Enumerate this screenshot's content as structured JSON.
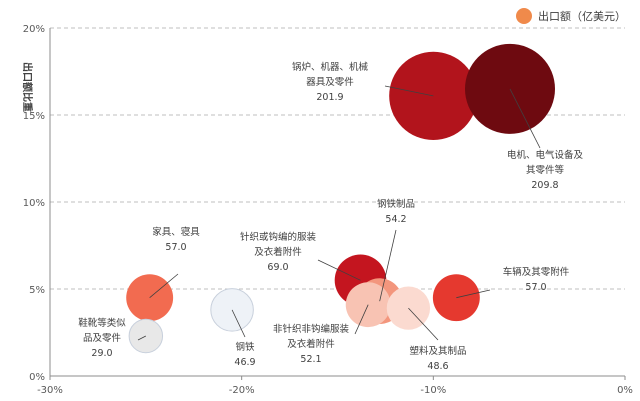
{
  "chart_data": {
    "type": "scatter",
    "title": "",
    "xlabel": "",
    "ylabel": "出口额比重",
    "xlim": [
      -30,
      0
    ],
    "ylim": [
      0,
      20
    ],
    "x_ticks": [
      "-30%",
      "-20%",
      "-10%",
      "0%"
    ],
    "y_ticks": [
      "0%",
      "5%",
      "10%",
      "15%",
      "20%"
    ],
    "grid": true,
    "legend": {
      "label": "出口额（亿美元）",
      "position": "top-right",
      "color": "#f08a4b"
    },
    "points": [
      {
        "lines": [
          "锅炉、机器、机械",
          "器具及零件"
        ],
        "value_text": "201.9",
        "value": 201.9,
        "x": -10.0,
        "y": 16.1,
        "color": "#b2141c"
      },
      {
        "lines": [
          "电机、电气设备及",
          "其零件等"
        ],
        "value_text": "209.8",
        "value": 209.8,
        "x": -6.0,
        "y": 16.5,
        "color": "#6e0a10"
      },
      {
        "lines": [
          "家具、寝具"
        ],
        "value_text": "57.0",
        "value": 57.0,
        "x": -24.8,
        "y": 4.5,
        "color": "#f26b50"
      },
      {
        "lines": [
          "鞋靴等类似",
          "品及零件"
        ],
        "value_text": "29.0",
        "value": 29.0,
        "x": -25.0,
        "y": 2.3,
        "color": "#e8e8e8"
      },
      {
        "lines": [
          "钢铁"
        ],
        "value_text": "46.9",
        "value": 46.9,
        "x": -20.5,
        "y": 3.8,
        "color": "#eef2f7"
      },
      {
        "lines": [
          "针织或钩编的服装",
          "及衣着附件"
        ],
        "value_text": "69.0",
        "value": 69.0,
        "x": -13.8,
        "y": 5.5,
        "color": "#c4151f"
      },
      {
        "lines": [
          "钢铁制品"
        ],
        "value_text": "54.2",
        "value": 54.2,
        "x": -12.8,
        "y": 4.3,
        "color": "#f3967d"
      },
      {
        "lines": [
          "非针织非钩编服装",
          "及衣着附件"
        ],
        "value_text": "52.1",
        "value": 52.1,
        "x": -13.4,
        "y": 4.1,
        "color": "#f8c3b3"
      },
      {
        "lines": [
          "塑料及其制品"
        ],
        "value_text": "48.6",
        "value": 48.6,
        "x": -11.3,
        "y": 3.9,
        "color": "#fbdad0"
      },
      {
        "lines": [
          "车辆及其零附件"
        ],
        "value_text": "57.0",
        "value": 57.0,
        "x": -8.8,
        "y": 4.5,
        "color": "#e5392f"
      }
    ]
  }
}
